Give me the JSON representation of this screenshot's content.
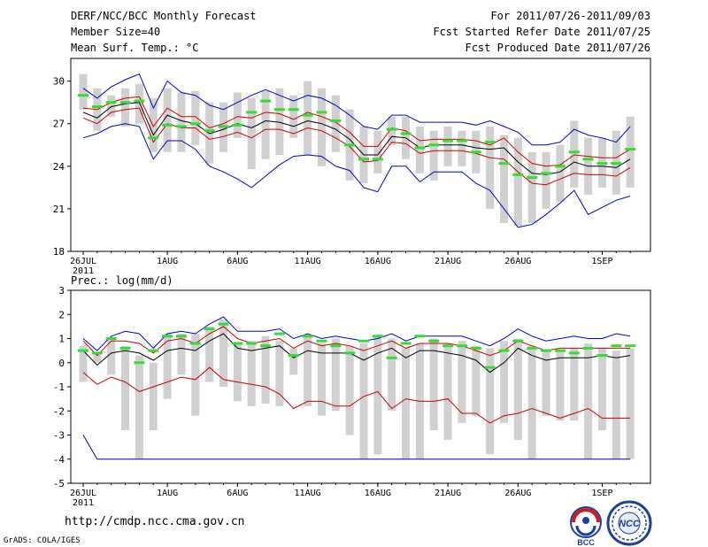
{
  "header": {
    "title": "DERF/NCC/BCC Monthly Forecast",
    "member_size": "Member Size=40",
    "variable": "Mean Surf. Temp.: °C",
    "period": "For 2011/07/26-2011/09/03",
    "started": "Fcst Started Refer Date 2011/07/25",
    "produced": "Fcst Produced Date 2011/07/26"
  },
  "footer": {
    "url": "http://cmdp.ncc.cma.gov.cn",
    "credit": "GrADS: COLA/IGES",
    "logos": [
      "BCC",
      "NCC"
    ]
  },
  "colors": {
    "envelope": "#0000cc",
    "spread": "#cc0000",
    "mean": "#000000",
    "box": "#d0d0d0",
    "median": "#33dd33"
  },
  "chart_data": [
    {
      "type": "line",
      "title": "Mean Surf. Temp.: °C",
      "x": [
        "26JUL",
        "27JUL",
        "28JUL",
        "29JUL",
        "30JUL",
        "31JUL",
        "1AUG",
        "2AUG",
        "3AUG",
        "4AUG",
        "5AUG",
        "6AUG",
        "7AUG",
        "8AUG",
        "9AUG",
        "10AUG",
        "11AUG",
        "12AUG",
        "13AUG",
        "14AUG",
        "15AUG",
        "16AUG",
        "17AUG",
        "18AUG",
        "19AUG",
        "20AUG",
        "21AUG",
        "22AUG",
        "23AUG",
        "24AUG",
        "25AUG",
        "26AUG",
        "27AUG",
        "28AUG",
        "29AUG",
        "30AUG",
        "31AUG",
        "1SEP",
        "2SEP",
        "3SEP"
      ],
      "x_ticks": [
        "26JUL",
        "1AUG",
        "6AUG",
        "11AUG",
        "16AUG",
        "21AUG",
        "26AUG",
        "1SEP"
      ],
      "x_sublabel": "2011",
      "ylim": [
        18,
        31.6
      ],
      "y_ticks": [
        18,
        21,
        24,
        27,
        30
      ],
      "series": [
        {
          "name": "ensemble max",
          "values": [
            29.5,
            28.8,
            29.6,
            30.1,
            30.5,
            28.1,
            30.0,
            29.2,
            29.0,
            28.3,
            28.0,
            28.5,
            29.0,
            29.4,
            29.0,
            28.6,
            29.0,
            28.8,
            28.3,
            27.6,
            26.8,
            26.6,
            27.6,
            27.6,
            27.1,
            27.1,
            27.1,
            27.1,
            26.9,
            27.2,
            26.8,
            26.4,
            25.5,
            25.5,
            25.7,
            26.6,
            26.2,
            26.0,
            25.7,
            26.8
          ]
        },
        {
          "name": "mean +1sd",
          "values": [
            28.1,
            28.0,
            28.5,
            28.8,
            28.9,
            26.8,
            28.1,
            27.5,
            27.5,
            26.7,
            27.0,
            27.5,
            27.4,
            27.8,
            27.7,
            27.3,
            27.8,
            27.5,
            27.1,
            26.4,
            25.4,
            25.4,
            26.7,
            26.5,
            25.8,
            25.9,
            25.9,
            25.9,
            25.8,
            25.5,
            26.0,
            25.0,
            24.2,
            24.0,
            24.1,
            24.8,
            24.7,
            24.6,
            24.6,
            25.2
          ]
        },
        {
          "name": "ensemble mean",
          "values": [
            27.8,
            27.4,
            28.2,
            28.4,
            28.5,
            26.2,
            27.6,
            27.2,
            27.0,
            26.3,
            26.6,
            27.0,
            26.7,
            27.2,
            27.1,
            26.8,
            27.2,
            27.0,
            26.6,
            25.9,
            24.8,
            24.8,
            26.1,
            26.0,
            25.3,
            25.5,
            25.5,
            25.5,
            25.3,
            25.2,
            25.3,
            24.3,
            23.5,
            23.4,
            23.6,
            24.3,
            24.0,
            24.0,
            23.9,
            24.5
          ]
        },
        {
          "name": "mean -1sd",
          "values": [
            27.4,
            27.0,
            27.8,
            28.0,
            28.1,
            25.7,
            27.0,
            26.7,
            26.7,
            25.9,
            26.1,
            26.4,
            26.0,
            26.6,
            26.6,
            26.3,
            26.7,
            26.5,
            26.0,
            25.4,
            24.3,
            24.4,
            25.7,
            25.6,
            24.9,
            25.1,
            25.1,
            25.1,
            24.9,
            24.6,
            24.5,
            23.6,
            22.8,
            22.7,
            23.1,
            23.5,
            23.4,
            23.4,
            23.3,
            23.9
          ]
        },
        {
          "name": "ensemble min",
          "values": [
            26.0,
            26.3,
            26.8,
            27.0,
            26.8,
            24.5,
            25.8,
            25.8,
            25.2,
            24.0,
            23.6,
            23.1,
            22.5,
            23.3,
            24.1,
            24.7,
            24.8,
            24.7,
            24.0,
            23.7,
            22.5,
            22.2,
            24.0,
            24.0,
            22.9,
            23.6,
            23.6,
            23.6,
            22.8,
            22.3,
            21.0,
            19.7,
            19.9,
            20.6,
            21.4,
            22.3,
            20.6,
            21.1,
            21.6,
            21.9
          ]
        }
      ],
      "boxes": {
        "upper": [
          30.5,
          29.5,
          29.0,
          29.5,
          29.8,
          28.8,
          29.5,
          29.2,
          29.3,
          28.5,
          28.5,
          29.2,
          28.8,
          29.3,
          29.5,
          29.0,
          30.0,
          29.5,
          29.0,
          28.0,
          26.8,
          26.5,
          27.5,
          27.5,
          26.8,
          26.5,
          26.8,
          26.5,
          26.5,
          26.8,
          26.2,
          26.0,
          25.0,
          25.0,
          25.5,
          27.2,
          26.0,
          26.0,
          26.5,
          27.5
        ],
        "lower": [
          28.0,
          26.5,
          27.5,
          26.8,
          27.0,
          25.0,
          25.0,
          25.0,
          25.5,
          24.2,
          25.0,
          26.0,
          23.8,
          24.5,
          24.8,
          26.0,
          24.8,
          24.0,
          25.0,
          23.0,
          22.8,
          23.5,
          25.5,
          24.5,
          23.5,
          23.0,
          24.0,
          24.0,
          23.5,
          21.0,
          20.0,
          19.8,
          20.0,
          21.0,
          21.5,
          22.5,
          22.0,
          22.5,
          22.0,
          22.5
        ],
        "median": [
          29.0,
          28.2,
          28.5,
          28.5,
          28.6,
          26.0,
          26.9,
          26.8,
          27.0,
          26.5,
          26.8,
          26.9,
          27.8,
          28.6,
          28.0,
          28.0,
          27.6,
          27.8,
          27.2,
          25.5,
          24.5,
          24.5,
          26.6,
          26.3,
          25.3,
          25.5,
          25.8,
          25.8,
          25.0,
          25.7,
          24.2,
          23.4,
          23.2,
          23.5,
          24.0,
          25.0,
          24.5,
          24.2,
          24.2,
          25.2
        ]
      }
    },
    {
      "type": "line",
      "title": "Prec.: log(mm/d)",
      "x": [
        "26JUL",
        "27JUL",
        "28JUL",
        "29JUL",
        "30JUL",
        "31JUL",
        "1AUG",
        "2AUG",
        "3AUG",
        "4AUG",
        "5AUG",
        "6AUG",
        "7AUG",
        "8AUG",
        "9AUG",
        "10AUG",
        "11AUG",
        "12AUG",
        "13AUG",
        "14AUG",
        "15AUG",
        "16AUG",
        "17AUG",
        "18AUG",
        "19AUG",
        "20AUG",
        "21AUG",
        "22AUG",
        "23AUG",
        "24AUG",
        "25AUG",
        "26AUG",
        "27AUG",
        "28AUG",
        "29AUG",
        "30AUG",
        "31AUG",
        "1SEP",
        "2SEP",
        "3SEP"
      ],
      "x_ticks": [
        "26JUL",
        "1AUG",
        "6AUG",
        "11AUG",
        "16AUG",
        "21AUG",
        "26AUG",
        "1SEP"
      ],
      "x_sublabel": "2011",
      "ylim": [
        -5,
        3
      ],
      "y_ticks": [
        -5,
        -4,
        -3,
        -2,
        -1,
        0,
        1,
        2,
        3
      ],
      "series": [
        {
          "name": "ensemble max",
          "values": [
            1.0,
            0.5,
            1.1,
            1.3,
            1.2,
            0.6,
            1.2,
            1.3,
            1.2,
            1.6,
            1.9,
            1.3,
            1.3,
            1.3,
            1.4,
            1.0,
            1.2,
            1.0,
            1.1,
            1.0,
            0.9,
            1.0,
            1.2,
            0.9,
            1.1,
            1.1,
            1.1,
            1.1,
            0.9,
            0.7,
            1.0,
            1.4,
            1.1,
            0.9,
            1.0,
            1.1,
            1.0,
            1.0,
            1.2,
            1.1
          ]
        },
        {
          "name": "mean +1sd",
          "values": [
            0.9,
            0.3,
            0.9,
            0.9,
            0.8,
            0.4,
            0.9,
            1.0,
            0.8,
            1.2,
            1.5,
            1.0,
            0.8,
            0.9,
            1.0,
            0.6,
            0.9,
            0.7,
            0.8,
            0.7,
            0.5,
            0.7,
            0.9,
            0.6,
            0.8,
            0.8,
            0.8,
            0.7,
            0.5,
            0.3,
            0.5,
            0.9,
            0.7,
            0.5,
            0.6,
            0.6,
            0.6,
            0.6,
            0.6,
            0.6
          ]
        },
        {
          "name": "ensemble mean",
          "values": [
            0.5,
            -0.1,
            0.4,
            0.5,
            0.4,
            0.1,
            0.5,
            0.6,
            0.5,
            0.9,
            1.2,
            0.6,
            0.5,
            0.6,
            0.7,
            0.2,
            0.5,
            0.4,
            0.4,
            0.4,
            0.1,
            0.4,
            0.6,
            0.2,
            0.5,
            0.5,
            0.4,
            0.3,
            0.1,
            -0.4,
            0.0,
            0.6,
            0.3,
            0.1,
            0.2,
            0.2,
            0.2,
            0.3,
            0.2,
            0.3
          ]
        },
        {
          "name": "mean -1sd",
          "values": [
            -0.4,
            -0.9,
            -0.6,
            -0.8,
            -1.2,
            -1.0,
            -0.8,
            -0.6,
            -0.7,
            -0.2,
            -0.7,
            -0.8,
            -0.9,
            -1.0,
            -1.3,
            -1.9,
            -1.6,
            -1.6,
            -1.8,
            -1.8,
            -1.4,
            -1.2,
            -1.9,
            -1.5,
            -1.6,
            -1.6,
            -1.5,
            -2.1,
            -2.1,
            -2.5,
            -2.2,
            -2.1,
            -1.9,
            -2.1,
            -2.3,
            -2.1,
            -1.9,
            -2.3,
            -2.3,
            -2.3
          ]
        },
        {
          "name": "ensemble min",
          "values": [
            -3.0,
            -4.0,
            -4.0,
            -4.0,
            -4.0,
            -4.0,
            -4.0,
            -4.0,
            -4.0,
            -4.0,
            -4.0,
            -4.0,
            -4.0,
            -4.0,
            -4.0,
            -4.0,
            -4.0,
            -4.0,
            -4.0,
            -4.0,
            -4.0,
            -4.0,
            -4.0,
            -4.0,
            -4.0,
            -4.0,
            -4.0,
            -4.0,
            -4.0,
            -4.0,
            -4.0,
            -4.0,
            -4.0,
            -4.0,
            -4.0,
            -4.0,
            -4.0,
            -4.0,
            -4.0,
            -4.0
          ]
        }
      ],
      "boxes": {
        "upper": [
          0.7,
          0.4,
          1.0,
          0.7,
          0.3,
          0.0,
          1.2,
          1.2,
          1.2,
          1.5,
          1.8,
          0.8,
          0.9,
          1.1,
          0.9,
          0.6,
          1.1,
          0.8,
          1.0,
          0.7,
          0.8,
          1.1,
          1.0,
          0.6,
          0.8,
          1.0,
          0.8,
          0.9,
          0.7,
          0.6,
          0.9,
          1.0,
          0.7,
          0.5,
          0.5,
          0.6,
          0.8,
          0.6,
          0.5,
          0.6
        ],
        "lower": [
          -0.8,
          0.0,
          -0.5,
          -2.8,
          -4.0,
          -2.8,
          -1.5,
          -0.5,
          -2.2,
          -0.8,
          -1.0,
          -1.6,
          -1.8,
          -1.7,
          -1.8,
          -0.5,
          -1.8,
          -2.2,
          -2.0,
          -3.0,
          -4.0,
          -3.8,
          -2.0,
          -4.0,
          -4.0,
          -2.8,
          -3.2,
          -2.5,
          -2.2,
          -3.8,
          -2.5,
          -3.2,
          -4.0,
          -2.2,
          -2.4,
          -2.4,
          -4.0,
          -2.8,
          -4.0,
          -4.0
        ],
        "median": [
          0.5,
          0.4,
          1.0,
          0.6,
          0.0,
          0.5,
          1.1,
          1.1,
          0.8,
          1.4,
          1.6,
          0.8,
          0.8,
          0.7,
          1.2,
          0.3,
          1.1,
          0.9,
          0.7,
          0.4,
          0.9,
          1.1,
          0.2,
          0.8,
          1.1,
          0.9,
          0.7,
          0.7,
          0.6,
          -0.2,
          0.5,
          0.9,
          0.6,
          0.5,
          0.5,
          0.4,
          0.6,
          0.3,
          0.7,
          0.7
        ]
      }
    }
  ]
}
